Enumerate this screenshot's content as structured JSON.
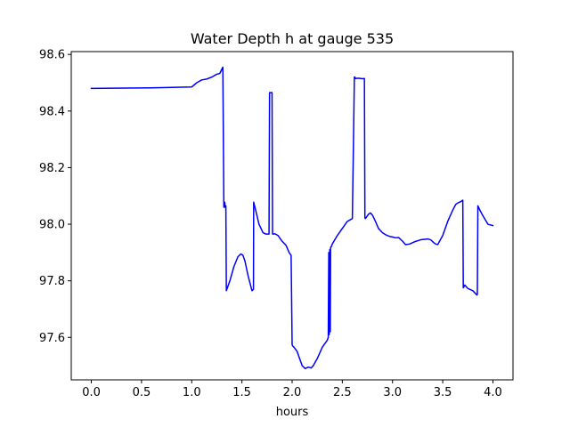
{
  "chart_data": {
    "type": "line",
    "title": "Water Depth h at gauge 535",
    "xlabel": "hours",
    "ylabel": "",
    "xlim": [
      -0.2,
      4.2
    ],
    "ylim": [
      97.45,
      98.61
    ],
    "xticks": [
      0.0,
      0.5,
      1.0,
      1.5,
      2.0,
      2.5,
      3.0,
      3.5,
      4.0
    ],
    "xtick_labels": [
      "0.0",
      "0.5",
      "1.0",
      "1.5",
      "2.0",
      "2.5",
      "3.0",
      "3.5",
      "4.0"
    ],
    "yticks": [
      97.6,
      97.8,
      98.0,
      98.2,
      98.4,
      98.6
    ],
    "ytick_labels": [
      "97.6",
      "97.8",
      "98.0",
      "98.2",
      "98.4",
      "98.6"
    ],
    "grid": false,
    "series": [
      {
        "color": "#0000ff",
        "x": [
          0.0,
          0.6,
          1.0,
          1.05,
          1.1,
          1.15,
          1.2,
          1.25,
          1.28,
          1.31,
          1.32,
          1.323,
          1.327,
          1.33,
          1.332,
          1.34,
          1.345,
          1.38,
          1.42,
          1.46,
          1.49,
          1.51,
          1.53,
          1.56,
          1.6,
          1.615,
          1.617,
          1.64,
          1.67,
          1.71,
          1.74,
          1.77,
          1.775,
          1.8,
          1.805,
          1.83,
          1.86,
          1.9,
          1.94,
          1.97,
          1.99,
          2.0,
          2.005,
          2.02,
          2.05,
          2.08,
          2.1,
          2.13,
          2.16,
          2.19,
          2.21,
          2.25,
          2.3,
          2.35,
          2.36,
          2.365,
          2.37,
          2.375,
          2.38,
          2.383,
          2.386,
          2.39,
          2.4,
          2.45,
          2.5,
          2.55,
          2.6,
          2.62,
          2.625,
          2.63,
          2.66,
          2.7,
          2.72,
          2.725,
          2.73,
          2.76,
          2.78,
          2.8,
          2.83,
          2.86,
          2.9,
          2.93,
          2.95,
          2.98,
          3.0,
          3.03,
          3.06,
          3.1,
          3.13,
          3.17,
          3.22,
          3.28,
          3.35,
          3.38,
          3.41,
          3.43,
          3.45,
          3.5,
          3.55,
          3.6,
          3.63,
          3.65,
          3.68,
          3.7,
          3.705,
          3.72,
          3.75,
          3.8,
          3.84,
          3.845,
          3.85,
          3.87,
          3.9,
          3.95,
          4.0
        ],
        "y": [
          98.48,
          98.482,
          98.485,
          98.5,
          98.51,
          98.513,
          98.52,
          98.53,
          98.533,
          98.555,
          98.06,
          98.065,
          98.078,
          98.075,
          98.06,
          98.065,
          97.765,
          97.8,
          97.85,
          97.885,
          97.895,
          97.89,
          97.87,
          97.82,
          97.765,
          97.77,
          98.078,
          98.045,
          98.0,
          97.97,
          97.965,
          97.965,
          98.465,
          98.465,
          97.965,
          97.966,
          97.96,
          97.94,
          97.925,
          97.9,
          97.89,
          97.575,
          97.57,
          97.565,
          97.55,
          97.52,
          97.5,
          97.49,
          97.495,
          97.492,
          97.5,
          97.525,
          97.565,
          97.59,
          97.6,
          97.9,
          97.61,
          97.91,
          97.62,
          97.915,
          97.92,
          97.92,
          97.93,
          97.96,
          97.985,
          98.01,
          98.02,
          98.52,
          98.52,
          98.515,
          98.516,
          98.514,
          98.515,
          98.022,
          98.02,
          98.035,
          98.04,
          98.032,
          98.01,
          97.985,
          97.97,
          97.963,
          97.96,
          97.956,
          97.955,
          97.952,
          97.953,
          97.94,
          97.928,
          97.93,
          97.938,
          97.945,
          97.948,
          97.945,
          97.935,
          97.93,
          97.928,
          97.96,
          98.01,
          98.05,
          98.07,
          98.075,
          98.08,
          98.085,
          97.775,
          97.785,
          97.773,
          97.765,
          97.75,
          97.752,
          98.065,
          98.05,
          98.03,
          98.0,
          97.995
        ]
      }
    ]
  }
}
